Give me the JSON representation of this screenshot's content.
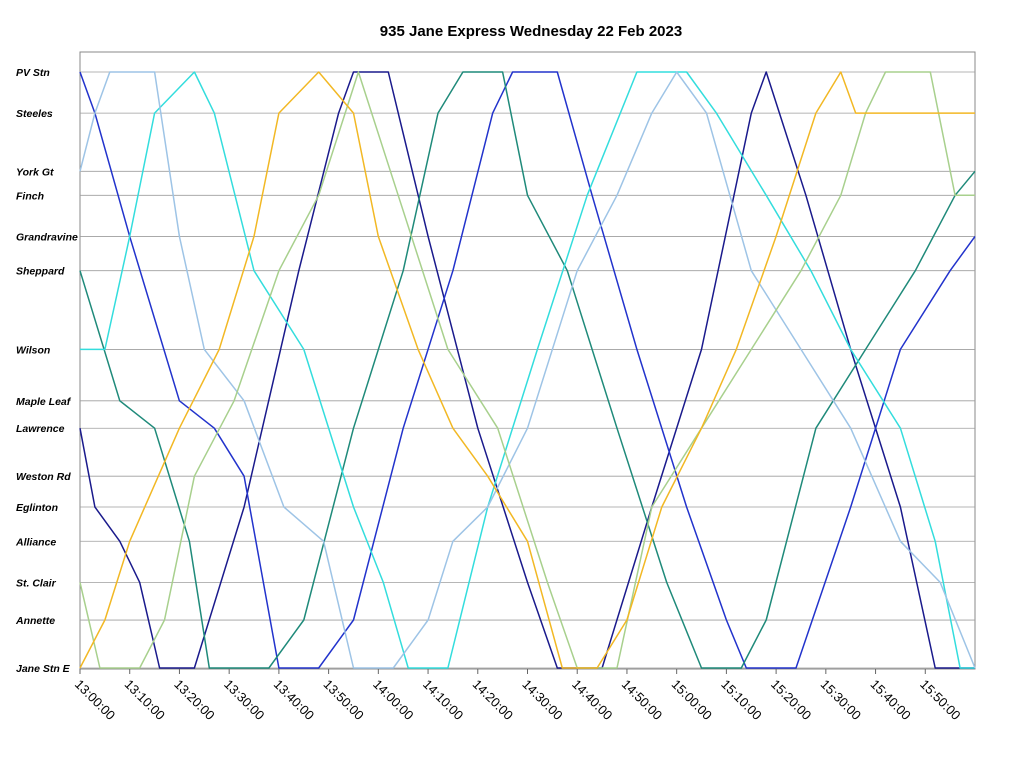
{
  "chart_data": {
    "type": "line",
    "title": "935 Jane Express Wednesday 22 Feb 2023",
    "xlabel": "",
    "ylabel": "",
    "x_ticks": [
      "13:00:00",
      "13:10:00",
      "13:20:00",
      "13:30:00",
      "13:40:00",
      "13:50:00",
      "14:00:00",
      "14:10:00",
      "14:20:00",
      "14:30:00",
      "14:40:00",
      "14:50:00",
      "15:00:00",
      "15:10:00",
      "15:20:00",
      "15:30:00",
      "15:40:00",
      "15:50:00"
    ],
    "xlim": [
      "13:00:00",
      "16:00:00"
    ],
    "grid": true,
    "legend": "none",
    "stops": [
      {
        "name": "PV Stn",
        "km": 0.0
      },
      {
        "name": "Steeles",
        "km": 1.2
      },
      {
        "name": "York Gt",
        "km": 2.9
      },
      {
        "name": "Finch",
        "km": 3.6
      },
      {
        "name": "Grandravine",
        "km": 4.8
      },
      {
        "name": "Sheppard",
        "km": 5.8
      },
      {
        "name": "Wilson",
        "km": 8.1
      },
      {
        "name": "Maple Leaf",
        "km": 9.6
      },
      {
        "name": "Lawrence",
        "km": 10.4
      },
      {
        "name": "Weston Rd",
        "km": 11.8
      },
      {
        "name": "Eglinton",
        "km": 12.7
      },
      {
        "name": "Alliance",
        "km": 13.7
      },
      {
        "name": "St. Clair",
        "km": 14.9
      },
      {
        "name": "Annette",
        "km": 16.0
      },
      {
        "name": "Jane Stn E",
        "km": 17.4
      }
    ],
    "series": [
      {
        "color": "#1a1a8c",
        "points": [
          [
            "13:00",
            "Lawrence"
          ],
          [
            "13:03",
            "Eglinton"
          ],
          [
            "13:08",
            "Alliance"
          ],
          [
            "13:12",
            "St. Clair"
          ],
          [
            "13:16",
            "Jane Stn E"
          ],
          [
            "13:23",
            "Jane Stn E"
          ],
          [
            "13:33",
            "Eglinton"
          ],
          [
            "13:44",
            "Sheppard"
          ],
          [
            "13:52",
            "Steeles"
          ],
          [
            "13:55",
            "PV Stn"
          ],
          [
            "14:02",
            "PV Stn"
          ],
          [
            "14:10",
            "Grandravine"
          ],
          [
            "14:20",
            "Lawrence"
          ],
          [
            "14:30",
            "St. Clair"
          ],
          [
            "14:36",
            "Jane Stn E"
          ],
          [
            "14:45",
            "Jane Stn E"
          ],
          [
            "14:55",
            "Eglinton"
          ],
          [
            "15:05",
            "Wilson"
          ],
          [
            "15:15",
            "Steeles"
          ],
          [
            "15:18",
            "PV Stn"
          ],
          [
            "15:26",
            "Finch"
          ],
          [
            "15:35",
            "Wilson"
          ],
          [
            "15:45",
            "Eglinton"
          ],
          [
            "15:52",
            "Jane Stn E"
          ],
          [
            "16:00",
            "Jane Stn E"
          ]
        ]
      },
      {
        "color": "#2233cc",
        "points": [
          [
            "13:00",
            "PV Stn"
          ],
          [
            "13:03",
            "Steeles"
          ],
          [
            "13:10",
            "Grandravine"
          ],
          [
            "13:20",
            "Maple Leaf"
          ],
          [
            "13:27",
            "Lawrence"
          ],
          [
            "13:33",
            "Weston Rd"
          ],
          [
            "13:40",
            "Jane Stn E"
          ],
          [
            "13:48",
            "Jane Stn E"
          ],
          [
            "13:55",
            "Annette"
          ],
          [
            "14:05",
            "Lawrence"
          ],
          [
            "14:15",
            "Sheppard"
          ],
          [
            "14:23",
            "Steeles"
          ],
          [
            "14:27",
            "PV Stn"
          ],
          [
            "14:36",
            "PV Stn"
          ],
          [
            "14:43",
            "Finch"
          ],
          [
            "14:52",
            "Wilson"
          ],
          [
            "15:02",
            "Eglinton"
          ],
          [
            "15:10",
            "Annette"
          ],
          [
            "15:14",
            "Jane Stn E"
          ],
          [
            "15:24",
            "Jane Stn E"
          ],
          [
            "15:35",
            "Eglinton"
          ],
          [
            "15:45",
            "Wilson"
          ],
          [
            "15:55",
            "Sheppard"
          ],
          [
            "16:00",
            "Grandravine"
          ]
        ]
      },
      {
        "color": "#1f8a7a",
        "points": [
          [
            "13:00",
            "Sheppard"
          ],
          [
            "13:08",
            "Maple Leaf"
          ],
          [
            "13:15",
            "Lawrence"
          ],
          [
            "13:22",
            "Alliance"
          ],
          [
            "13:26",
            "Jane Stn E"
          ],
          [
            "13:38",
            "Jane Stn E"
          ],
          [
            "13:45",
            "Annette"
          ],
          [
            "13:55",
            "Lawrence"
          ],
          [
            "14:05",
            "Sheppard"
          ],
          [
            "14:12",
            "Steeles"
          ],
          [
            "14:17",
            "PV Stn"
          ],
          [
            "14:25",
            "PV Stn"
          ],
          [
            "14:30",
            "Finch"
          ],
          [
            "14:38",
            "Sheppard"
          ],
          [
            "14:48",
            "Lawrence"
          ],
          [
            "14:58",
            "St. Clair"
          ],
          [
            "15:05",
            "Jane Stn E"
          ],
          [
            "15:13",
            "Jane Stn E"
          ],
          [
            "15:18",
            "Annette"
          ],
          [
            "15:28",
            "Lawrence"
          ],
          [
            "15:38",
            "Wilson"
          ],
          [
            "15:48",
            "Sheppard"
          ],
          [
            "15:56",
            "Finch"
          ],
          [
            "16:00",
            "York Gt"
          ]
        ]
      },
      {
        "color": "#33dddd",
        "points": [
          [
            "13:00",
            "Wilson"
          ],
          [
            "13:05",
            "Wilson"
          ],
          [
            "13:10",
            "Grandravine"
          ],
          [
            "13:15",
            "Steeles"
          ],
          [
            "13:23",
            "PV Stn"
          ],
          [
            "13:27",
            "Steeles"
          ],
          [
            "13:35",
            "Sheppard"
          ],
          [
            "13:45",
            "Wilson"
          ],
          [
            "13:55",
            "Eglinton"
          ],
          [
            "14:01",
            "St. Clair"
          ],
          [
            "14:06",
            "Jane Stn E"
          ],
          [
            "14:14",
            "Jane Stn E"
          ],
          [
            "14:22",
            "Eglinton"
          ],
          [
            "14:32",
            "Wilson"
          ],
          [
            "14:42",
            "Finch"
          ],
          [
            "14:52",
            "PV Stn"
          ],
          [
            "15:02",
            "PV Stn"
          ],
          [
            "15:08",
            "Steeles"
          ],
          [
            "15:18",
            "Finch"
          ],
          [
            "15:27",
            "Sheppard"
          ],
          [
            "15:35",
            "Wilson"
          ],
          [
            "15:45",
            "Lawrence"
          ],
          [
            "15:52",
            "Alliance"
          ],
          [
            "15:57",
            "Jane Stn E"
          ],
          [
            "16:00",
            "Jane Stn E"
          ]
        ]
      },
      {
        "color": "#9ec4e6",
        "points": [
          [
            "13:00",
            "York Gt"
          ],
          [
            "13:03",
            "Steeles"
          ],
          [
            "13:06",
            "PV Stn"
          ],
          [
            "13:15",
            "PV Stn"
          ],
          [
            "13:20",
            "Grandravine"
          ],
          [
            "13:25",
            "Wilson"
          ],
          [
            "13:33",
            "Maple Leaf"
          ],
          [
            "13:41",
            "Eglinton"
          ],
          [
            "13:49",
            "Alliance"
          ],
          [
            "13:55",
            "Jane Stn E"
          ],
          [
            "14:03",
            "Jane Stn E"
          ],
          [
            "14:10",
            "Annette"
          ],
          [
            "14:15",
            "Alliance"
          ],
          [
            "14:22",
            "Eglinton"
          ],
          [
            "14:30",
            "Lawrence"
          ],
          [
            "14:40",
            "Sheppard"
          ],
          [
            "14:48",
            "Finch"
          ],
          [
            "14:55",
            "Steeles"
          ],
          [
            "15:00",
            "PV Stn"
          ],
          [
            "15:06",
            "Steeles"
          ],
          [
            "15:15",
            "Sheppard"
          ],
          [
            "15:25",
            "Wilson"
          ],
          [
            "15:35",
            "Lawrence"
          ],
          [
            "15:45",
            "Alliance"
          ],
          [
            "15:53",
            "St. Clair"
          ],
          [
            "16:00",
            "Jane Stn E"
          ]
        ]
      },
      {
        "color": "#a8d08d",
        "points": [
          [
            "13:00",
            "St. Clair"
          ],
          [
            "13:04",
            "Jane Stn E"
          ],
          [
            "13:12",
            "Jane Stn E"
          ],
          [
            "13:17",
            "Annette"
          ],
          [
            "13:23",
            "Weston Rd"
          ],
          [
            "13:31",
            "Maple Leaf"
          ],
          [
            "13:40",
            "Sheppard"
          ],
          [
            "13:48",
            "Finch"
          ],
          [
            "13:56",
            "PV Stn"
          ],
          [
            "14:04",
            "Finch"
          ],
          [
            "14:14",
            "Wilson"
          ],
          [
            "14:24",
            "Lawrence"
          ],
          [
            "14:34",
            "St. Clair"
          ],
          [
            "14:40",
            "Jane Stn E"
          ],
          [
            "14:48",
            "Jane Stn E"
          ],
          [
            "14:55",
            "Eglinton"
          ],
          [
            "15:05",
            "Lawrence"
          ],
          [
            "15:15",
            "Wilson"
          ],
          [
            "15:25",
            "Sheppard"
          ],
          [
            "15:33",
            "Finch"
          ],
          [
            "15:38",
            "Steeles"
          ],
          [
            "15:42",
            "PV Stn"
          ],
          [
            "15:51",
            "PV Stn"
          ],
          [
            "15:56",
            "Finch"
          ],
          [
            "16:00",
            "Finch"
          ]
        ]
      },
      {
        "color": "#f2b824",
        "points": [
          [
            "13:00",
            "Jane Stn E"
          ],
          [
            "13:05",
            "Annette"
          ],
          [
            "13:10",
            "Alliance"
          ],
          [
            "13:20",
            "Lawrence"
          ],
          [
            "13:28",
            "Wilson"
          ],
          [
            "13:35",
            "Grandravine"
          ],
          [
            "13:40",
            "Steeles"
          ],
          [
            "13:48",
            "PV Stn"
          ],
          [
            "13:55",
            "Steeles"
          ],
          [
            "14:00",
            "Grandravine"
          ],
          [
            "14:08",
            "Wilson"
          ],
          [
            "14:15",
            "Lawrence"
          ],
          [
            "14:22",
            "Weston Rd"
          ],
          [
            "14:30",
            "Alliance"
          ],
          [
            "14:37",
            "Jane Stn E"
          ],
          [
            "14:44",
            "Jane Stn E"
          ],
          [
            "14:50",
            "Annette"
          ],
          [
            "14:57",
            "Eglinton"
          ],
          [
            "15:05",
            "Lawrence"
          ],
          [
            "15:12",
            "Wilson"
          ],
          [
            "15:20",
            "Grandravine"
          ],
          [
            "15:28",
            "Steeles"
          ],
          [
            "15:33",
            "PV Stn"
          ],
          [
            "15:36",
            "Steeles"
          ],
          [
            "16:00",
            "Steeles"
          ]
        ]
      }
    ]
  }
}
